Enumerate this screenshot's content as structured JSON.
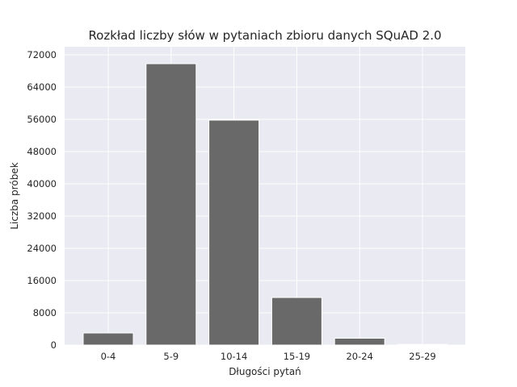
{
  "chart_data": {
    "type": "bar",
    "title": "Rozkład liczby słów w pytaniach zbioru danych SQuAD 2.0",
    "xlabel": "Długości pytań",
    "ylabel": "Liczba próbek",
    "categories": [
      "0-4",
      "5-9",
      "10-14",
      "15-19",
      "20-24",
      "25-29"
    ],
    "values": [
      3000,
      69800,
      55800,
      11800,
      1700,
      150
    ],
    "ylim": [
      0,
      72000
    ],
    "yticks": [
      "0",
      "8000",
      "16000",
      "24000",
      "32000",
      "40000",
      "48000",
      "56000",
      "64000",
      "72000"
    ],
    "grid": true,
    "colors": {
      "bar": "#696969",
      "plot_background": "#eaeaf2",
      "grid": "#ffffff"
    }
  }
}
